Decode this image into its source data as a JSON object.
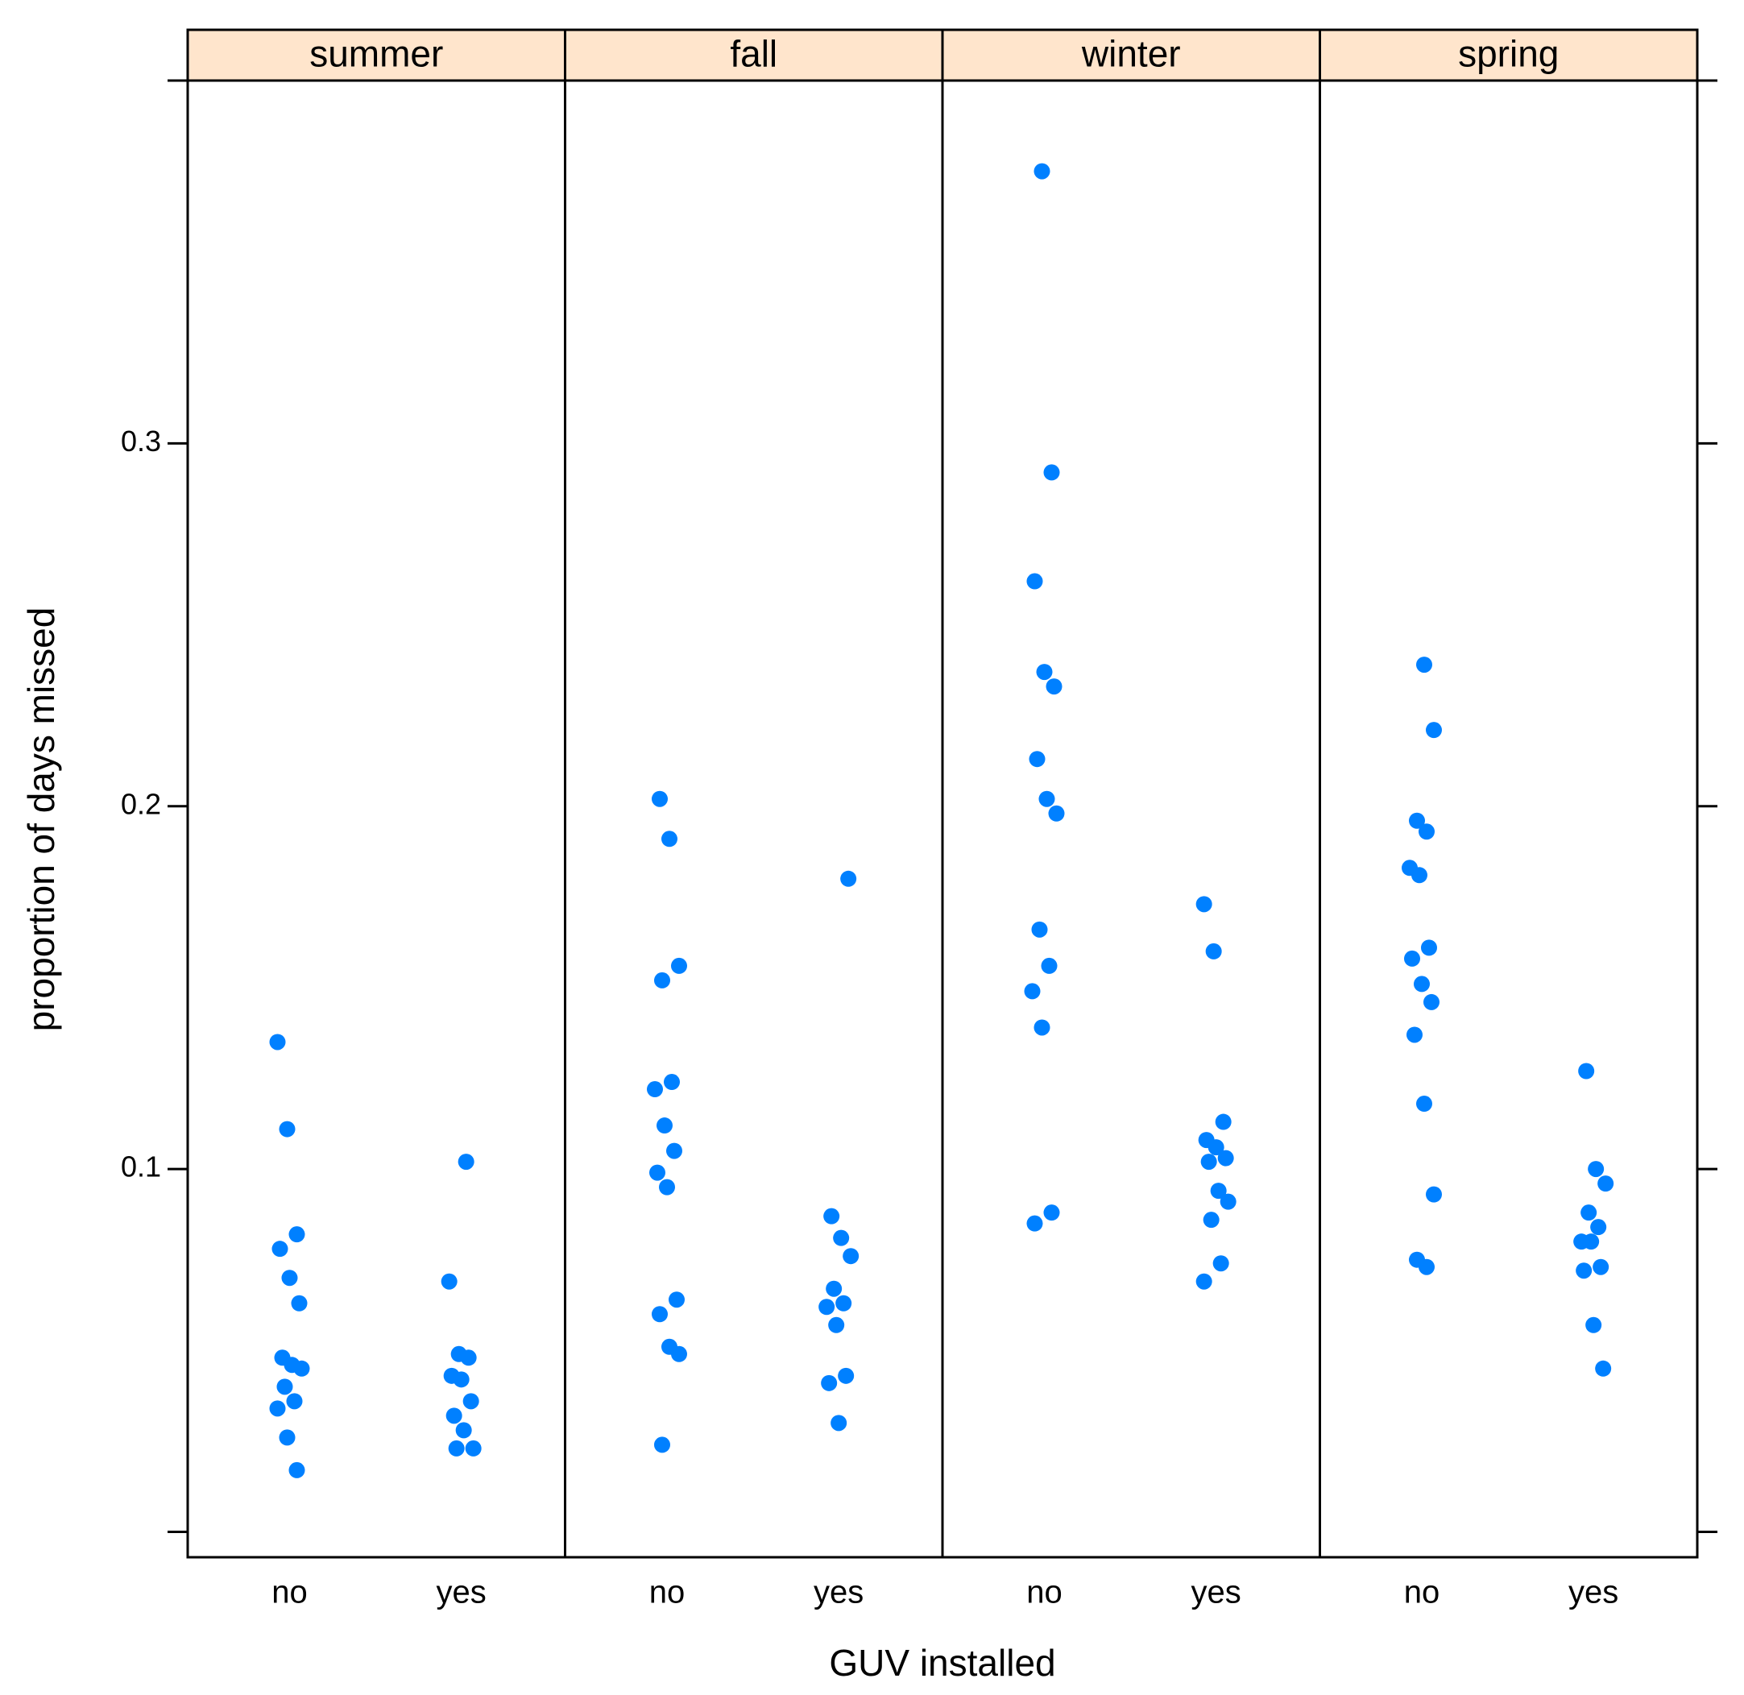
{
  "chart_data": {
    "type": "strip",
    "xlabel": "GUV installed",
    "ylabel": "proportion of days missed",
    "categories": [
      "no",
      "yes"
    ],
    "color": "#0080ff",
    "strip_color": "#ffe5cc",
    "ylim": [
      -0.007,
      0.4
    ],
    "yticks": [
      0.1,
      0.2,
      0.3
    ],
    "unlabeled_yticks": [
      0,
      0.4
    ],
    "panels": [
      {
        "title": "summer",
        "values": [
          [
            0.135,
            0.111,
            0.082,
            0.078,
            0.07,
            0.063,
            0.048,
            0.046,
            0.045,
            0.04,
            0.036,
            0.034,
            0.026,
            0.017
          ],
          [
            0.102,
            0.069,
            0.049,
            0.048,
            0.043,
            0.042,
            0.036,
            0.032,
            0.028,
            0.023,
            0.023
          ]
        ]
      },
      {
        "title": "fall",
        "values": [
          [
            0.202,
            0.191,
            0.156,
            0.152,
            0.124,
            0.122,
            0.112,
            0.105,
            0.099,
            0.095,
            0.064,
            0.06,
            0.051,
            0.049,
            0.024
          ],
          [
            0.18,
            0.087,
            0.081,
            0.076,
            0.067,
            0.063,
            0.062,
            0.057,
            0.043,
            0.041,
            0.03
          ]
        ]
      },
      {
        "title": "winter",
        "values": [
          [
            0.375,
            0.292,
            0.262,
            0.237,
            0.233,
            0.213,
            0.202,
            0.198,
            0.166,
            0.156,
            0.149,
            0.139,
            0.088,
            0.085
          ],
          [
            0.173,
            0.16,
            0.113,
            0.108,
            0.106,
            0.103,
            0.102,
            0.094,
            0.091,
            0.086,
            0.074,
            0.069
          ]
        ]
      },
      {
        "title": "spring",
        "values": [
          [
            0.239,
            0.221,
            0.196,
            0.193,
            0.183,
            0.181,
            0.161,
            0.158,
            0.151,
            0.146,
            0.137,
            0.118,
            0.093,
            0.075,
            0.073
          ],
          [
            0.127,
            0.1,
            0.096,
            0.088,
            0.084,
            0.08,
            0.08,
            0.073,
            0.072,
            0.057,
            0.045
          ]
        ]
      }
    ]
  }
}
